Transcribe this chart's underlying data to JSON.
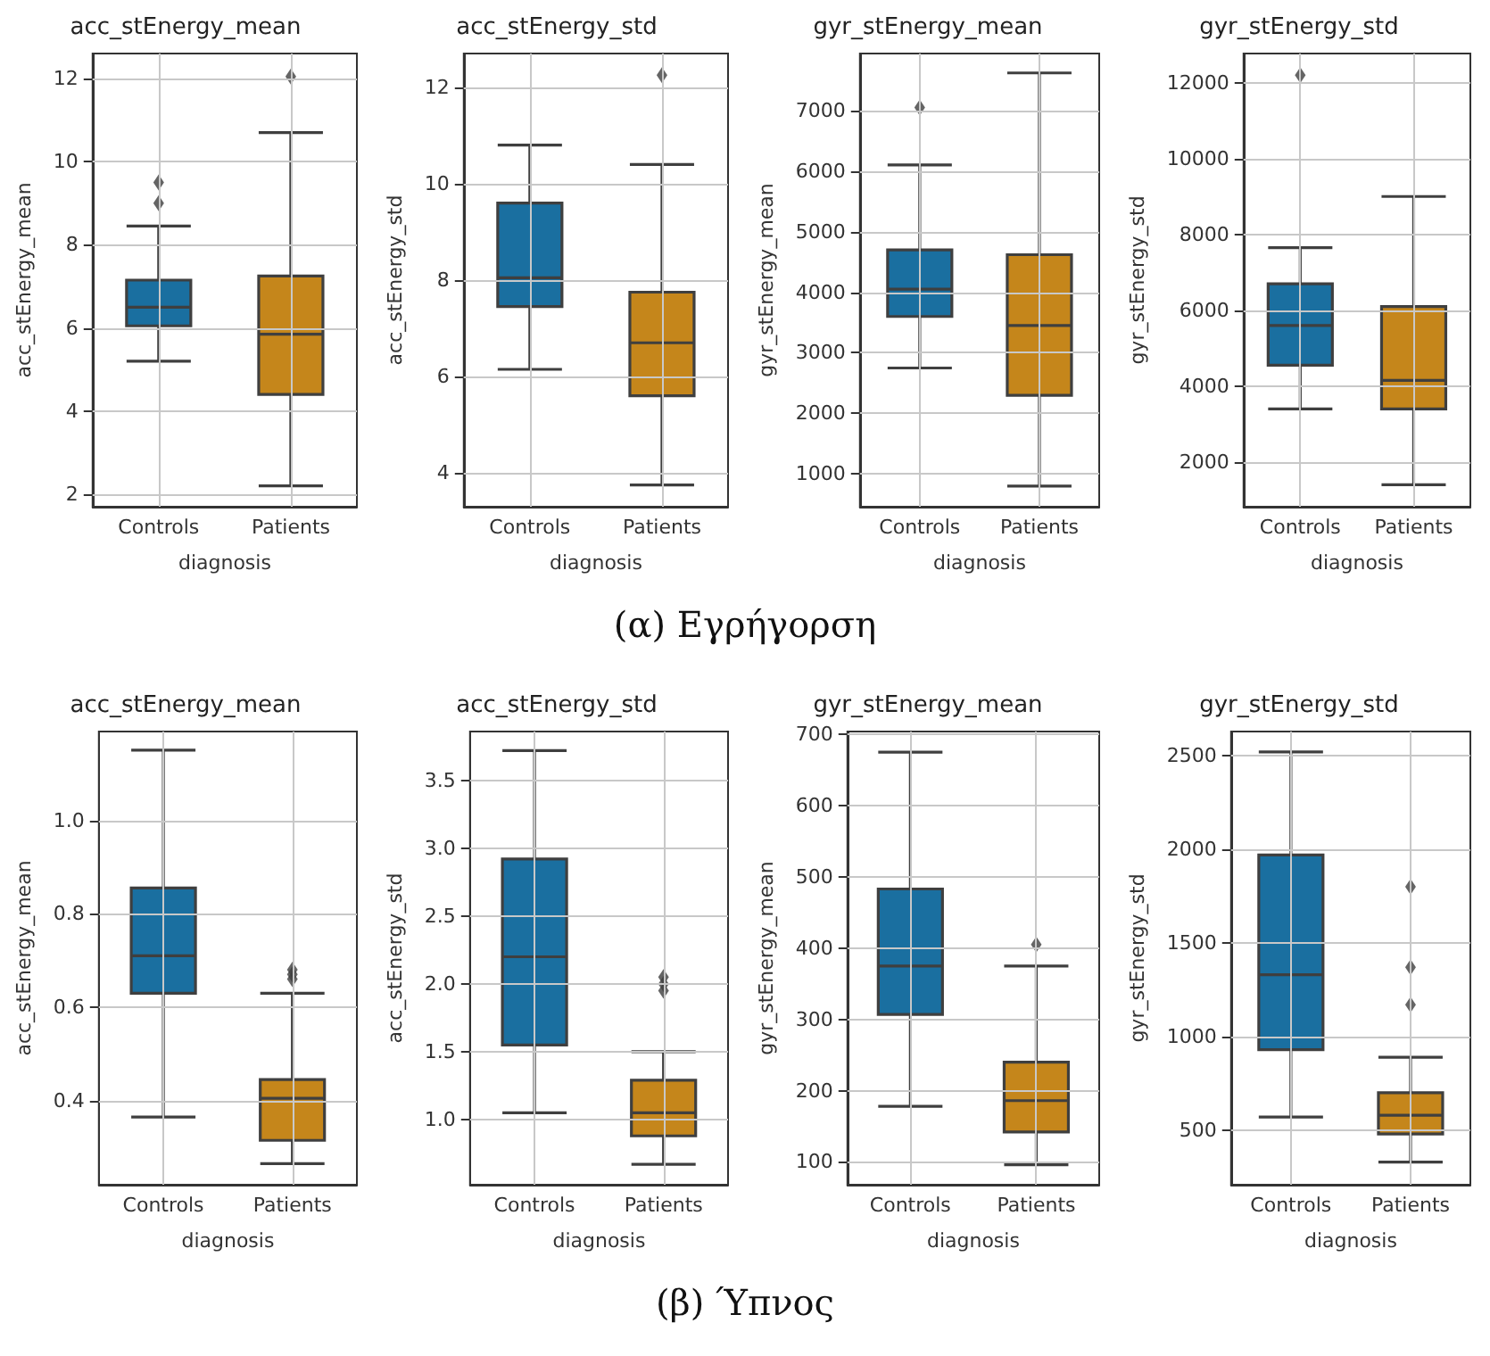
{
  "chart_data": [
    {
      "type": "box",
      "title": "acc_stEnergy_mean",
      "xlabel": "diagnosis",
      "ylabel": "acc_stEnergy_mean",
      "categories": [
        "Controls",
        "Patients"
      ],
      "colors": [
        "#1a6fa0",
        "#c5861b"
      ],
      "marker": "diamond",
      "grid": true,
      "ylim": [
        1.7,
        12.6
      ],
      "yticks": [
        2,
        4,
        6,
        8,
        10,
        12
      ],
      "boxes": [
        {
          "low": 5.2,
          "q1": 6.05,
          "median": 6.5,
          "q3": 7.15,
          "high": 8.45,
          "outliers": [
            9.0,
            9.5
          ]
        },
        {
          "low": 2.2,
          "q1": 4.4,
          "median": 5.85,
          "q3": 7.25,
          "high": 10.7,
          "outliers": [
            12.05
          ]
        }
      ],
      "annotations": [
        "(α) Εγρήγορση"
      ]
    },
    {
      "type": "box",
      "title": "acc_stEnergy_std",
      "xlabel": "diagnosis",
      "ylabel": "acc_stEnergy_std",
      "categories": [
        "Controls",
        "Patients"
      ],
      "colors": [
        "#1a6fa0",
        "#c5861b"
      ],
      "marker": "diamond",
      "grid": true,
      "ylim": [
        3.3,
        12.7
      ],
      "yticks": [
        4,
        6,
        8,
        10,
        12
      ],
      "boxes": [
        {
          "low": 6.15,
          "q1": 7.45,
          "median": 8.05,
          "q3": 9.6,
          "high": 10.8
        },
        {
          "low": 3.75,
          "q1": 5.6,
          "median": 6.7,
          "q3": 7.75,
          "high": 10.4,
          "outliers": [
            12.25
          ]
        }
      ]
    },
    {
      "type": "box",
      "title": "gyr_stEnergy_mean",
      "xlabel": "diagnosis",
      "ylabel": "gyr_stEnergy_mean",
      "categories": [
        "Controls",
        "Patients"
      ],
      "colors": [
        "#1a6fa0",
        "#c5861b"
      ],
      "marker": "diamond",
      "grid": true,
      "ylim": [
        460,
        7940
      ],
      "yticks": [
        1000,
        2000,
        3000,
        4000,
        5000,
        6000,
        7000
      ],
      "boxes": [
        {
          "low": 2750,
          "q1": 3600,
          "median": 4050,
          "q3": 4700,
          "high": 6100,
          "outliers": [
            7050
          ]
        },
        {
          "low": 800,
          "q1": 2300,
          "median": 3450,
          "q3": 4620,
          "high": 7620
        }
      ]
    },
    {
      "type": "box",
      "title": "gyr_stEnergy_std",
      "xlabel": "diagnosis",
      "ylabel": "gyr_stEnergy_std",
      "categories": [
        "Controls",
        "Patients"
      ],
      "colors": [
        "#1a6fa0",
        "#c5861b"
      ],
      "marker": "diamond",
      "grid": true,
      "ylim": [
        820,
        12770
      ],
      "yticks": [
        2000,
        4000,
        6000,
        8000,
        10000,
        12000
      ],
      "boxes": [
        {
          "low": 3400,
          "q1": 4550,
          "median": 5600,
          "q3": 6700,
          "high": 7650,
          "outliers": [
            12200
          ]
        },
        {
          "low": 1400,
          "q1": 3400,
          "median": 4150,
          "q3": 6100,
          "high": 9000
        }
      ]
    },
    {
      "type": "box",
      "title": "acc_stEnergy_mean",
      "xlabel": "diagnosis",
      "ylabel": "acc_stEnergy_mean",
      "categories": [
        "Controls",
        "Patients"
      ],
      "colors": [
        "#1a6fa0",
        "#c5861b"
      ],
      "marker": "diamond",
      "grid": true,
      "ylim": [
        0.22,
        1.19
      ],
      "yticks": [
        0.4,
        0.6,
        0.8,
        {
          "value": 1,
          "label": "1.0"
        }
      ],
      "boxes": [
        {
          "low": 0.365,
          "q1": 0.63,
          "median": 0.71,
          "q3": 0.855,
          "high": 1.15
        },
        {
          "low": 0.265,
          "q1": 0.315,
          "median": 0.405,
          "q3": 0.445,
          "high": 0.63,
          "outliers": [
            0.66,
            0.67,
            0.68
          ]
        }
      ],
      "annotations": [
        "(β) Ύπνος"
      ]
    },
    {
      "type": "box",
      "title": "acc_stEnergy_std",
      "xlabel": "diagnosis",
      "ylabel": "acc_stEnergy_std",
      "categories": [
        "Controls",
        "Patients"
      ],
      "colors": [
        "#1a6fa0",
        "#c5861b"
      ],
      "marker": "diamond",
      "grid": true,
      "ylim": [
        0.52,
        3.86
      ],
      "yticks": [
        {
          "value": 1,
          "label": "1.0"
        },
        1.5,
        {
          "value": 2,
          "label": "2.0"
        },
        2.5,
        {
          "value": 3,
          "label": "3.0"
        },
        3.5
      ],
      "boxes": [
        {
          "low": 1.05,
          "q1": 1.55,
          "median": 2.2,
          "q3": 2.92,
          "high": 3.72
        },
        {
          "low": 0.67,
          "q1": 0.88,
          "median": 1.05,
          "q3": 1.29,
          "high": 1.5,
          "outliers": [
            1.95,
            2.0,
            2.05
          ]
        }
      ]
    },
    {
      "type": "box",
      "title": "gyr_stEnergy_mean",
      "xlabel": "diagnosis",
      "ylabel": "gyr_stEnergy_mean",
      "categories": [
        "Controls",
        "Patients"
      ],
      "colors": [
        "#1a6fa0",
        "#c5861b"
      ],
      "marker": "diamond",
      "grid": true,
      "ylim": [
        68,
        704
      ],
      "yticks": [
        100,
        200,
        300,
        400,
        500,
        600,
        700
      ],
      "boxes": [
        {
          "low": 178,
          "q1": 307,
          "median": 375,
          "q3": 483,
          "high": 675
        },
        {
          "low": 96,
          "q1": 142,
          "median": 186,
          "q3": 240,
          "high": 375,
          "outliers": [
            405
          ]
        }
      ]
    },
    {
      "type": "box",
      "title": "gyr_stEnergy_std",
      "xlabel": "diagnosis",
      "ylabel": "gyr_stEnergy_std",
      "categories": [
        "Controls",
        "Patients"
      ],
      "colors": [
        "#1a6fa0",
        "#c5861b"
      ],
      "marker": "diamond",
      "grid": true,
      "ylim": [
        209,
        2629
      ],
      "yticks": [
        500,
        1000,
        1500,
        2000,
        2500
      ],
      "boxes": [
        {
          "low": 570,
          "q1": 930,
          "median": 1330,
          "q3": 1970,
          "high": 2520
        },
        {
          "low": 330,
          "q1": 480,
          "median": 580,
          "q3": 700,
          "high": 890,
          "outliers": [
            1170,
            1370,
            1800
          ]
        }
      ]
    }
  ]
}
